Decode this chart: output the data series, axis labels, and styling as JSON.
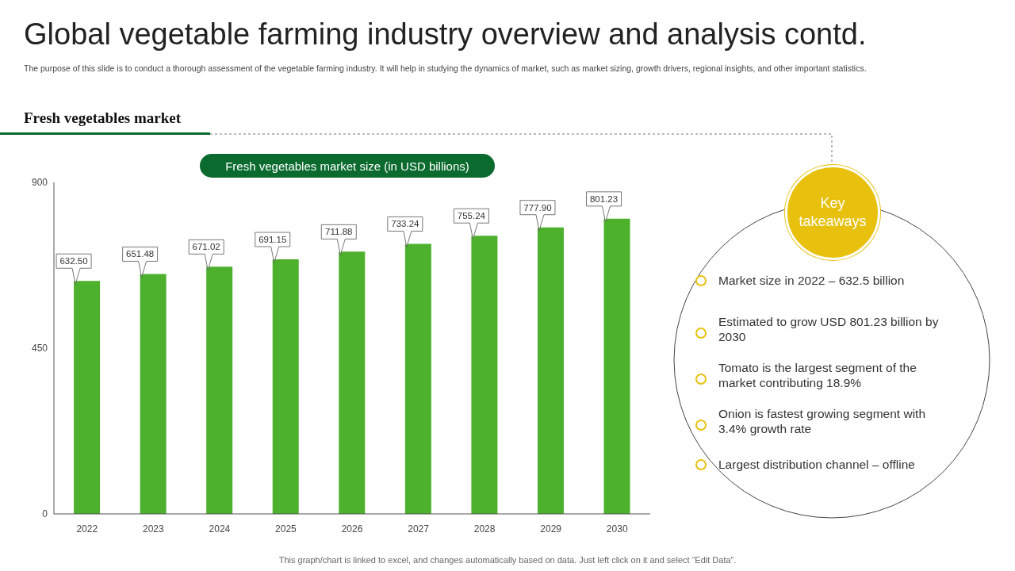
{
  "chart_data": {
    "type": "bar",
    "title": "Global vegetable farming industry overview and analysis contd.",
    "subtitle": "The purpose of this slide is to conduct a thorough assessment of the vegetable farming industry. It will help in studying the dynamics of market, such as market sizing, growth drivers, regional insights, and other important statistics.",
    "categories": [
      "2022",
      "2023",
      "2024",
      "2025",
      "2026",
      "2027",
      "2028",
      "2029",
      "2030"
    ],
    "values": [
      632.5,
      651.48,
      671.02,
      691.15,
      711.88,
      733.24,
      755.24,
      777.9,
      801.23
    ],
    "value_labels": [
      "632.50",
      "651.48",
      "671.02",
      "691.15",
      "711.88",
      "733.24",
      "755.24",
      "777.90",
      "801.23"
    ],
    "color": "#4db12e",
    "ylim": [
      0,
      900
    ],
    "yticks": [
      0,
      450,
      900
    ],
    "annotations": [
      "Fresh vegetables market",
      "Fresh vegetables market size (in USD billions)",
      "Key takeaways",
      "Market size in 2022 – 632.5 billion",
      "Estimated to grow USD 801.23 billion by 2030",
      "Tomato is the largest segment of the market contributing 18.9%",
      "Onion is fastest growing segment with 3.4% growth rate",
      "Largest distribution channel – offline",
      "This graph/chart is linked to excel, and changes automatically based on data. Just left click on it and select “Edit Data”."
    ]
  }
}
